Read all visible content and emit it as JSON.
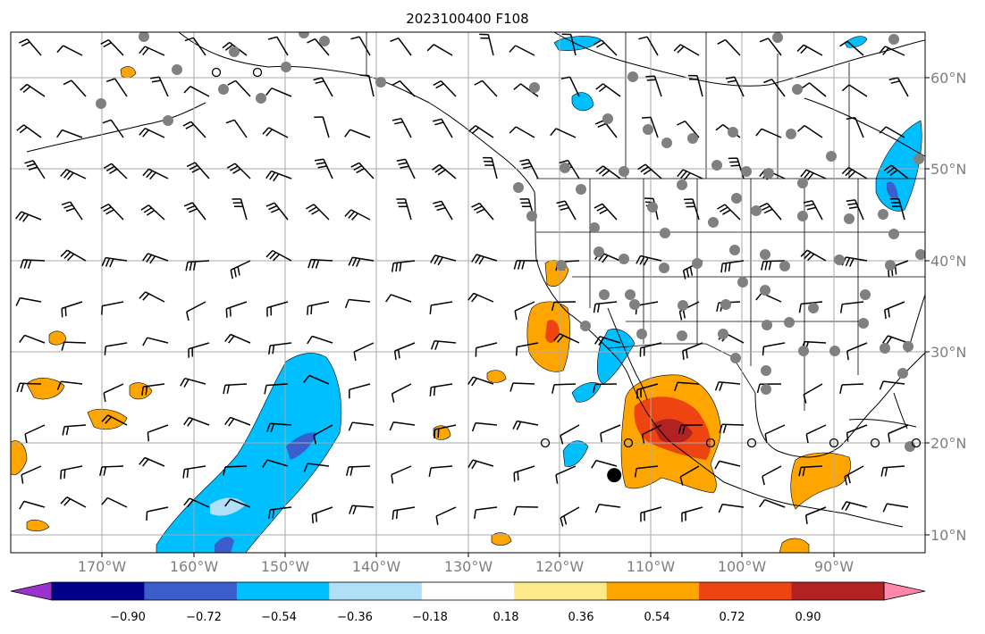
{
  "title": "2023100400 F108",
  "map": {
    "lon_labels": [
      "170°W",
      "160°W",
      "150°W",
      "140°W",
      "130°W",
      "120°W",
      "110°W",
      "100°W",
      "90°W"
    ],
    "lat_labels": [
      "60°N",
      "50°N",
      "40°N",
      "30°N",
      "20°N",
      "10°N"
    ],
    "lon_range": [
      -180,
      -80
    ],
    "lat_range": [
      8,
      65
    ],
    "marker": {
      "lon": -114,
      "lat": 16.5
    }
  },
  "colorbar": {
    "tick_labels": [
      "−0.90",
      "−0.72",
      "−0.54",
      "−0.36",
      "−0.18",
      "0.18",
      "0.36",
      "0.54",
      "0.72",
      "0.90"
    ],
    "colors": [
      "#9933cc",
      "#00008b",
      "#3a5fcd",
      "#00bfff",
      "#b0e0f8",
      "#ffffff",
      "#fce98a",
      "#ffa500",
      "#ee4411",
      "#b22222",
      "#ff88aa"
    ]
  },
  "colors": {
    "positive_mid": "#ffa500",
    "positive_high": "#ee4411",
    "positive_max": "#b22222",
    "negative_mid": "#00bfff",
    "negative_high": "#3a5fcd",
    "negative_max": "#9933cc",
    "dots": "#808080"
  }
}
